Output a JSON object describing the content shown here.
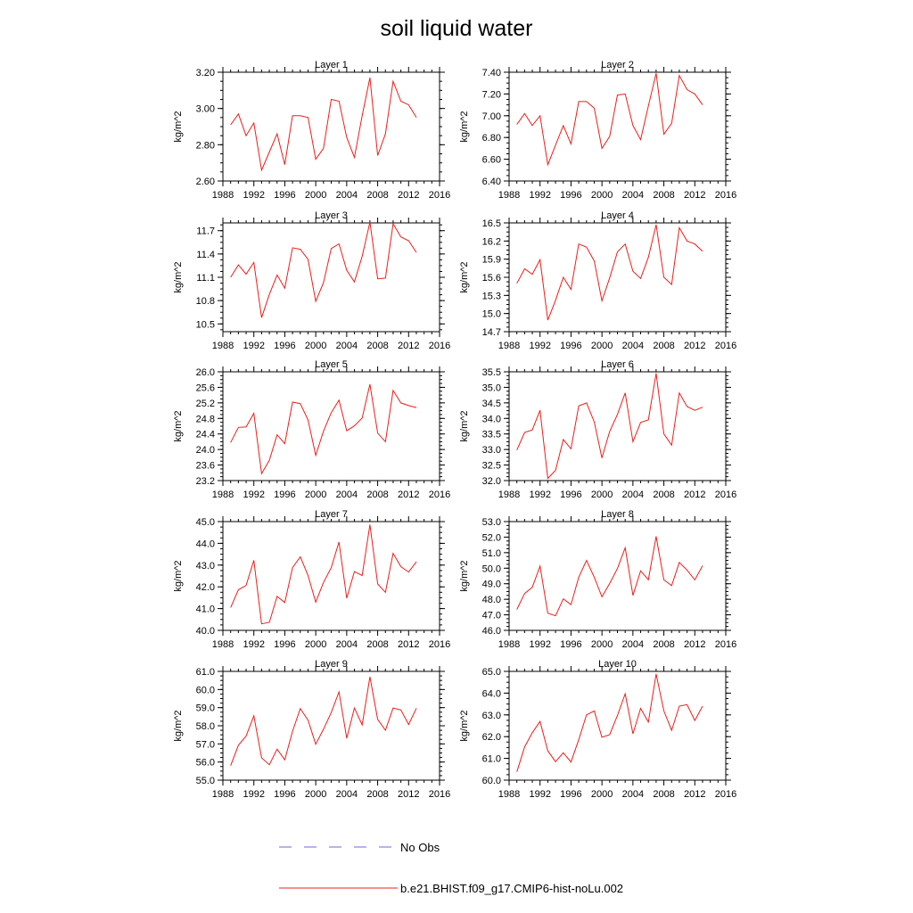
{
  "title": "soil liquid water",
  "legend": {
    "obs_label": "No Obs",
    "model_label": "b.e21.BHIST.f09_g17.CMIP6-hist-noLu.002",
    "obs_color": "#6b6bd6",
    "model_color": "#e8201c"
  },
  "chart_data": [
    {
      "type": "line",
      "title": "Layer 1",
      "ylabel": "kg/m^2",
      "xlim": [
        1988,
        2016
      ],
      "xticks": [
        1988,
        1992,
        1996,
        2000,
        2004,
        2008,
        2012,
        2016
      ],
      "ylim": [
        2.6,
        3.2
      ],
      "yticks": [
        "2.60",
        "2.80",
        "3.00",
        "3.20"
      ],
      "x": [
        1989,
        1990,
        1991,
        1992,
        1993,
        1994,
        1995,
        1996,
        1997,
        1998,
        1999,
        2000,
        2001,
        2002,
        2003,
        2004,
        2005,
        2006,
        2007,
        2008,
        2009,
        2010,
        2011,
        2012,
        2013
      ],
      "series": [
        {
          "values": [
            2.91,
            2.97,
            2.85,
            2.92,
            2.66,
            2.76,
            2.86,
            2.69,
            2.96,
            2.96,
            2.95,
            2.72,
            2.78,
            3.05,
            3.04,
            2.84,
            2.73,
            2.96,
            3.17,
            2.74,
            2.86,
            3.15,
            3.04,
            3.02,
            2.95
          ]
        }
      ]
    },
    {
      "type": "line",
      "title": "Layer 2",
      "ylabel": "kg/m^2",
      "xlim": [
        1988,
        2016
      ],
      "xticks": [
        1988,
        1992,
        1996,
        2000,
        2004,
        2008,
        2012,
        2016
      ],
      "ylim": [
        6.4,
        7.4
      ],
      "yticks": [
        "6.40",
        "6.60",
        "6.80",
        "7.00",
        "7.20",
        "7.40"
      ],
      "x": [
        1989,
        1990,
        1991,
        1992,
        1993,
        1994,
        1995,
        1996,
        1997,
        1998,
        1999,
        2000,
        2001,
        2002,
        2003,
        2004,
        2005,
        2006,
        2007,
        2008,
        2009,
        2010,
        2011,
        2012,
        2013
      ],
      "series": [
        {
          "values": [
            6.92,
            7.02,
            6.91,
            7.0,
            6.55,
            6.73,
            6.91,
            6.74,
            7.13,
            7.13,
            7.07,
            6.7,
            6.81,
            7.19,
            7.2,
            6.91,
            6.78,
            7.09,
            7.39,
            6.83,
            6.93,
            7.37,
            7.24,
            7.2,
            7.1
          ]
        }
      ]
    },
    {
      "type": "line",
      "title": "Layer 3",
      "ylabel": "kg/m^2",
      "xlim": [
        1988,
        2016
      ],
      "xticks": [
        1988,
        1992,
        1996,
        2000,
        2004,
        2008,
        2012,
        2016
      ],
      "ylim": [
        10.4,
        11.8
      ],
      "yticks": [
        "10.5",
        "10.8",
        "11.1",
        "11.4",
        "11.7"
      ],
      "x": [
        1989,
        1990,
        1991,
        1992,
        1993,
        1994,
        1995,
        1996,
        1997,
        1998,
        1999,
        2000,
        2001,
        2002,
        2003,
        2004,
        2005,
        2006,
        2007,
        2008,
        2009,
        2010,
        2011,
        2012,
        2013
      ],
      "series": [
        {
          "values": [
            11.1,
            11.26,
            11.14,
            11.29,
            10.58,
            10.88,
            11.13,
            10.96,
            11.48,
            11.46,
            11.33,
            10.79,
            11.03,
            11.47,
            11.53,
            11.19,
            11.04,
            11.37,
            11.81,
            11.08,
            11.09,
            11.79,
            11.62,
            11.57,
            11.42
          ]
        }
      ]
    },
    {
      "type": "line",
      "title": "Layer 4",
      "ylabel": "kg/m^2",
      "xlim": [
        1988,
        2016
      ],
      "xticks": [
        1988,
        1992,
        1996,
        2000,
        2004,
        2008,
        2012,
        2016
      ],
      "ylim": [
        14.7,
        16.5
      ],
      "yticks": [
        "14.7",
        "15.0",
        "15.3",
        "15.6",
        "15.9",
        "16.2",
        "16.5"
      ],
      "x": [
        1989,
        1990,
        1991,
        1992,
        1993,
        1994,
        1995,
        1996,
        1997,
        1998,
        1999,
        2000,
        2001,
        2002,
        2003,
        2004,
        2005,
        2006,
        2007,
        2008,
        2009,
        2010,
        2011,
        2012,
        2013
      ],
      "series": [
        {
          "values": [
            15.5,
            15.74,
            15.65,
            15.89,
            14.89,
            15.22,
            15.6,
            15.4,
            16.15,
            16.1,
            15.87,
            15.21,
            15.59,
            16.02,
            16.15,
            15.7,
            15.58,
            15.93,
            16.47,
            15.6,
            15.48,
            16.42,
            16.2,
            16.15,
            16.03
          ]
        }
      ]
    },
    {
      "type": "line",
      "title": "Layer 5",
      "ylabel": "kg/m^2",
      "xlim": [
        1988,
        2016
      ],
      "xticks": [
        1988,
        1992,
        1996,
        2000,
        2004,
        2008,
        2012,
        2016
      ],
      "ylim": [
        23.2,
        26.0
      ],
      "yticks": [
        "23.2",
        "23.6",
        "24.0",
        "24.4",
        "24.8",
        "25.2",
        "25.6",
        "26.0"
      ],
      "x": [
        1989,
        1990,
        1991,
        1992,
        1993,
        1994,
        1995,
        1996,
        1997,
        1998,
        1999,
        2000,
        2001,
        2002,
        2003,
        2004,
        2005,
        2006,
        2007,
        2008,
        2009,
        2010,
        2011,
        2012,
        2013
      ],
      "series": [
        {
          "values": [
            24.18,
            24.57,
            24.58,
            24.93,
            23.38,
            23.72,
            24.38,
            24.15,
            25.22,
            25.18,
            24.76,
            23.85,
            24.47,
            24.95,
            25.27,
            24.48,
            24.61,
            24.81,
            25.68,
            24.42,
            24.2,
            25.52,
            25.2,
            25.13,
            25.08
          ]
        }
      ]
    },
    {
      "type": "line",
      "title": "Layer 6",
      "ylabel": "kg/m^2",
      "xlim": [
        1988,
        2016
      ],
      "xticks": [
        1988,
        1992,
        1996,
        2000,
        2004,
        2008,
        2012,
        2016
      ],
      "ylim": [
        32.0,
        35.5
      ],
      "yticks": [
        "32.0",
        "32.5",
        "33.0",
        "33.5",
        "34.0",
        "34.5",
        "35.0",
        "35.5"
      ],
      "x": [
        1989,
        1990,
        1991,
        1992,
        1993,
        1994,
        1995,
        1996,
        1997,
        1998,
        1999,
        2000,
        2001,
        2002,
        2003,
        2004,
        2005,
        2006,
        2007,
        2008,
        2009,
        2010,
        2011,
        2012,
        2013
      ],
      "series": [
        {
          "values": [
            32.98,
            33.55,
            33.63,
            34.26,
            32.07,
            32.33,
            33.32,
            33.02,
            34.4,
            34.5,
            33.89,
            32.73,
            33.58,
            34.13,
            34.82,
            33.25,
            33.87,
            33.95,
            35.45,
            33.5,
            33.14,
            34.82,
            34.38,
            34.26,
            34.36
          ]
        }
      ]
    },
    {
      "type": "line",
      "title": "Layer 7",
      "ylabel": "kg/m^2",
      "xlim": [
        1988,
        2016
      ],
      "xticks": [
        1988,
        1992,
        1996,
        2000,
        2004,
        2008,
        2012,
        2016
      ],
      "ylim": [
        40.0,
        45.0
      ],
      "yticks": [
        "40.0",
        "41.0",
        "42.0",
        "43.0",
        "44.0",
        "45.0"
      ],
      "x": [
        1989,
        1990,
        1991,
        1992,
        1993,
        1994,
        1995,
        1996,
        1997,
        1998,
        1999,
        2000,
        2001,
        2002,
        2003,
        2004,
        2005,
        2006,
        2007,
        2008,
        2009,
        2010,
        2011,
        2012,
        2013
      ],
      "series": [
        {
          "values": [
            41.05,
            41.87,
            42.06,
            43.22,
            40.3,
            40.37,
            41.56,
            41.28,
            42.88,
            43.38,
            42.52,
            41.3,
            42.2,
            42.88,
            44.06,
            41.48,
            42.7,
            42.52,
            44.86,
            42.13,
            41.75,
            43.54,
            42.93,
            42.68,
            43.15
          ]
        }
      ]
    },
    {
      "type": "line",
      "title": "Layer 8",
      "ylabel": "kg/m^2",
      "xlim": [
        1988,
        2016
      ],
      "xticks": [
        1988,
        1992,
        1996,
        2000,
        2004,
        2008,
        2012,
        2016
      ],
      "ylim": [
        46.0,
        53.0
      ],
      "yticks": [
        "46.0",
        "47.0",
        "48.0",
        "49.0",
        "50.0",
        "51.0",
        "52.0",
        "53.0"
      ],
      "x": [
        1989,
        1990,
        1991,
        1992,
        1993,
        1994,
        1995,
        1996,
        1997,
        1998,
        1999,
        2000,
        2001,
        2002,
        2003,
        2004,
        2005,
        2006,
        2007,
        2008,
        2009,
        2010,
        2011,
        2012,
        2013
      ],
      "series": [
        {
          "values": [
            47.35,
            48.37,
            48.77,
            50.13,
            47.1,
            46.94,
            48.03,
            47.65,
            49.42,
            50.5,
            49.42,
            48.16,
            49.02,
            49.98,
            51.32,
            48.25,
            49.83,
            49.26,
            52.05,
            49.25,
            48.88,
            50.37,
            49.88,
            49.25,
            50.16
          ]
        }
      ]
    },
    {
      "type": "line",
      "title": "Layer 9",
      "ylabel": "kg/m^2",
      "xlim": [
        1988,
        2016
      ],
      "xticks": [
        1988,
        1992,
        1996,
        2000,
        2004,
        2008,
        2012,
        2016
      ],
      "ylim": [
        55.0,
        61.0
      ],
      "yticks": [
        "55.0",
        "56.0",
        "57.0",
        "58.0",
        "59.0",
        "60.0",
        "61.0"
      ],
      "x": [
        1989,
        1990,
        1991,
        1992,
        1993,
        1994,
        1995,
        1996,
        1997,
        1998,
        1999,
        2000,
        2001,
        2002,
        2003,
        2004,
        2005,
        2006,
        2007,
        2008,
        2009,
        2010,
        2011,
        2012,
        2013
      ],
      "series": [
        {
          "values": [
            55.8,
            56.93,
            57.43,
            58.55,
            56.23,
            55.85,
            56.71,
            56.12,
            57.7,
            58.95,
            58.31,
            56.98,
            57.81,
            58.73,
            59.87,
            57.31,
            58.98,
            58.05,
            60.7,
            58.35,
            57.75,
            58.98,
            58.87,
            58.07,
            58.97
          ]
        }
      ]
    },
    {
      "type": "line",
      "title": "Layer 10",
      "ylabel": "kg/m^2",
      "xlim": [
        1988,
        2016
      ],
      "xticks": [
        1988,
        1992,
        1996,
        2000,
        2004,
        2008,
        2012,
        2016
      ],
      "ylim": [
        60.0,
        65.0
      ],
      "yticks": [
        "60.0",
        "61.0",
        "62.0",
        "63.0",
        "64.0",
        "65.0"
      ],
      "x": [
        1989,
        1990,
        1991,
        1992,
        1993,
        1994,
        1995,
        1996,
        1997,
        1998,
        1999,
        2000,
        2001,
        2002,
        2003,
        2004,
        2005,
        2006,
        2007,
        2008,
        2009,
        2010,
        2011,
        2012,
        2013
      ],
      "series": [
        {
          "values": [
            60.38,
            61.53,
            62.18,
            62.7,
            61.35,
            60.85,
            61.26,
            60.83,
            61.86,
            63.0,
            63.18,
            61.97,
            62.09,
            62.97,
            63.97,
            62.13,
            63.3,
            62.67,
            64.88,
            63.18,
            62.29,
            63.4,
            63.47,
            62.74,
            63.4
          ]
        }
      ]
    }
  ]
}
